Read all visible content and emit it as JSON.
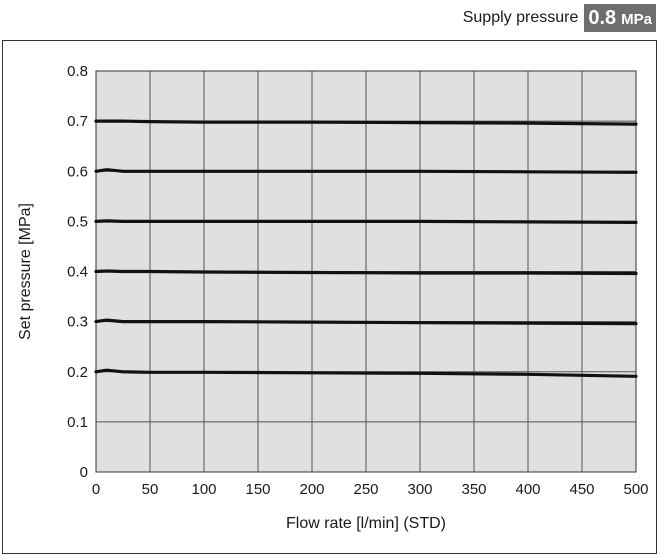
{
  "header": {
    "label": "Supply pressure",
    "badge_value": "0.8",
    "badge_unit": "MPa"
  },
  "colors": {
    "plot_background": "#e0e0e0",
    "grid": "#555555",
    "series": "#111111",
    "badge_background": "#6e6e6e"
  },
  "chart_data": {
    "type": "line",
    "title": "",
    "xlabel": "Flow rate [l/min] (STD)",
    "ylabel": "Set pressure [MPa]",
    "xlim": [
      0,
      500
    ],
    "ylim": [
      0,
      0.8
    ],
    "x_ticks": [
      0,
      50,
      100,
      150,
      200,
      250,
      300,
      350,
      400,
      450,
      500
    ],
    "y_ticks": [
      0,
      0.1,
      0.2,
      0.3,
      0.4,
      0.5,
      0.6,
      0.7,
      0.8
    ],
    "x_tick_labels": [
      "0",
      "50",
      "100",
      "150",
      "200",
      "250",
      "300",
      "350",
      "400",
      "450",
      "500"
    ],
    "y_tick_labels": [
      "0",
      "0.1",
      "0.2",
      "0.3",
      "0.4",
      "0.5",
      "0.6",
      "0.7",
      "0.8"
    ],
    "grid": true,
    "legend": "none",
    "series": [
      {
        "x": [
          0,
          10,
          25,
          50,
          100,
          200,
          300,
          400,
          500
        ],
        "y": [
          0.7,
          0.7,
          0.7,
          0.699,
          0.698,
          0.698,
          0.697,
          0.696,
          0.694
        ]
      },
      {
        "x": [
          0,
          10,
          25,
          50,
          100,
          200,
          300,
          400,
          500
        ],
        "y": [
          0.6,
          0.603,
          0.6,
          0.6,
          0.6,
          0.6,
          0.6,
          0.599,
          0.598
        ]
      },
      {
        "x": [
          0,
          10,
          25,
          50,
          100,
          200,
          300,
          400,
          500
        ],
        "y": [
          0.5,
          0.501,
          0.5,
          0.5,
          0.5,
          0.5,
          0.5,
          0.499,
          0.498
        ]
      },
      {
        "x": [
          0,
          10,
          25,
          50,
          100,
          200,
          300,
          400,
          500
        ],
        "y": [
          0.4,
          0.401,
          0.4,
          0.4,
          0.399,
          0.398,
          0.397,
          0.397,
          0.396
        ]
      },
      {
        "x": [
          0,
          10,
          25,
          50,
          100,
          200,
          300,
          400,
          500
        ],
        "y": [
          0.3,
          0.303,
          0.3,
          0.3,
          0.3,
          0.299,
          0.298,
          0.297,
          0.296
        ]
      },
      {
        "x": [
          0,
          10,
          25,
          50,
          100,
          200,
          300,
          400,
          500
        ],
        "y": [
          0.2,
          0.203,
          0.2,
          0.199,
          0.199,
          0.198,
          0.197,
          0.195,
          0.191
        ]
      }
    ]
  }
}
